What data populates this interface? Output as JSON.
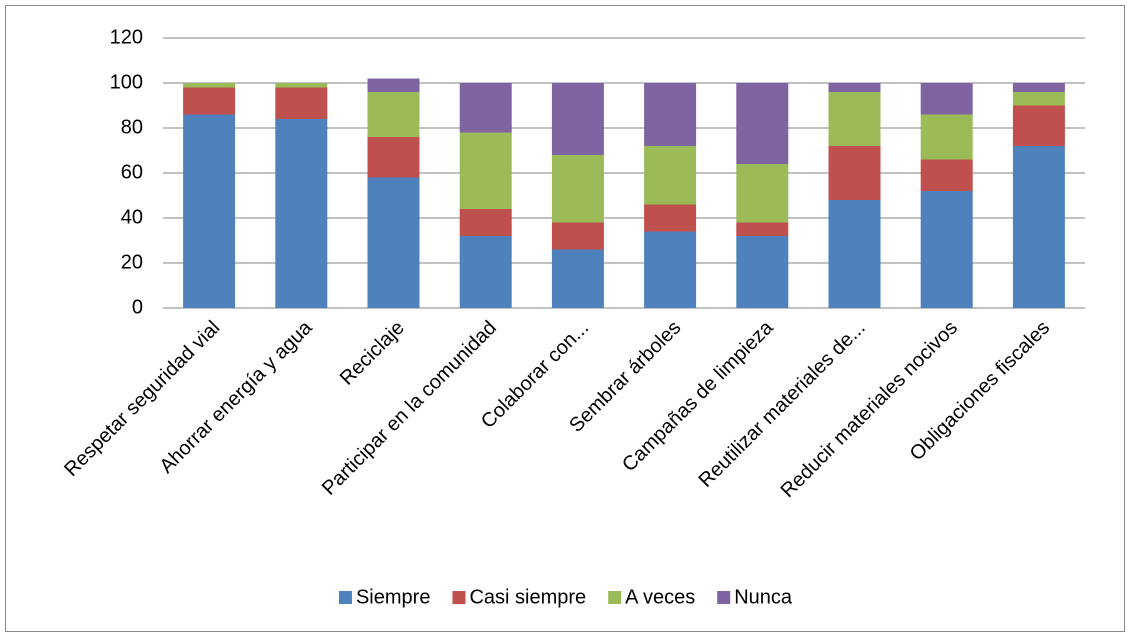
{
  "chart_data": {
    "type": "stacked_bar",
    "categories": [
      "Respetar seguridad vial",
      "Ahorrar energía y agua",
      "Reciclaje",
      "Participar en la comunidad",
      "Colaborar con...",
      "Sembrar árboles",
      "Campañas de limpieza",
      "Reutilizar materiales de...",
      "Reducir materiales nocivos",
      "Obligaciones fiscales"
    ],
    "series": [
      {
        "name": "Siempre",
        "color": "#4f81bd",
        "values": [
          86,
          84,
          58,
          32,
          26,
          34,
          32,
          48,
          52,
          72
        ]
      },
      {
        "name": "Casi siempre",
        "color": "#c0504d",
        "values": [
          12,
          14,
          18,
          12,
          12,
          12,
          6,
          24,
          14,
          18
        ]
      },
      {
        "name": "A veces",
        "color": "#9bbb59",
        "values": [
          2,
          2,
          20,
          34,
          30,
          26,
          26,
          24,
          20,
          6
        ]
      },
      {
        "name": "Nunca",
        "color": "#8064a2",
        "values": [
          0,
          0,
          6,
          22,
          32,
          28,
          36,
          4,
          14,
          4
        ]
      }
    ],
    "ylim": [
      0,
      120
    ],
    "yticks": [
      0,
      20,
      40,
      60,
      80,
      100,
      120
    ],
    "grid": true,
    "legend": "bottom"
  }
}
